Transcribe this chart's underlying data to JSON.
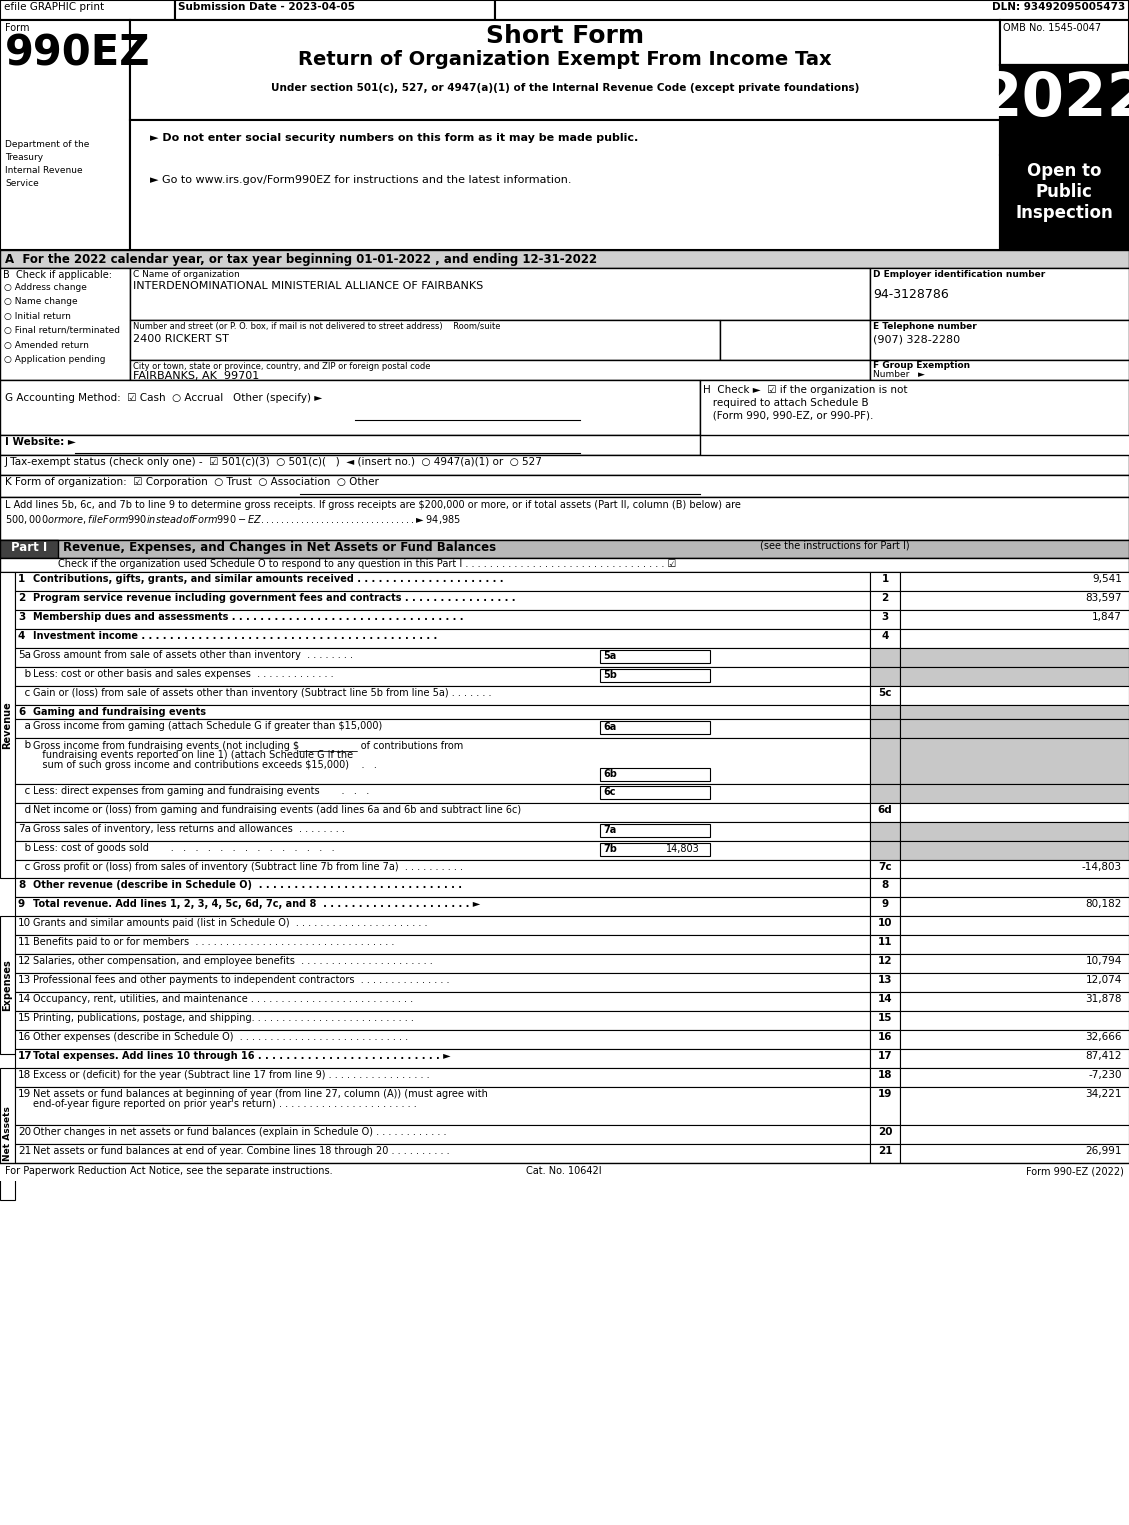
{
  "title_top": "Short Form",
  "title_main": "Return of Organization Exempt From Income Tax",
  "subtitle": "Under section 501(c), 527, or 4947(a)(1) of the Internal Revenue Code (except private foundations)",
  "efile_text": "efile GRAPHIC print",
  "submission_date": "Submission Date - 2023-04-05",
  "dln": "DLN: 93492095005473",
  "form_number": "990EZ",
  "year": "2022",
  "omb": "OMB No. 1545-0047",
  "dept1": "Department of the",
  "dept2": "Treasury",
  "dept3": "Internal Revenue",
  "dept4": "Service",
  "bullet1": "► Do not enter social security numbers on this form as it may be made public.",
  "bullet2": "► Go to www.irs.gov/Form990EZ for instructions and the latest information.",
  "section_a": "A  For the 2022 calendar year, or tax year beginning 01-01-2022 , and ending 12-31-2022",
  "org_name": "INTERDENOMINATIONAL MINISTERIAL ALLIANCE OF FAIRBANKS",
  "ein": "94-3128786",
  "street": "2400 RICKERT ST",
  "phone": "(907) 328-2280",
  "city": "FAIRBANKS, AK  99701",
  "footer_left": "For Paperwork Reduction Act Notice, see the separate instructions.",
  "footer_cat": "Cat. No. 10642I",
  "footer_right": "Form 990-EZ (2022)"
}
